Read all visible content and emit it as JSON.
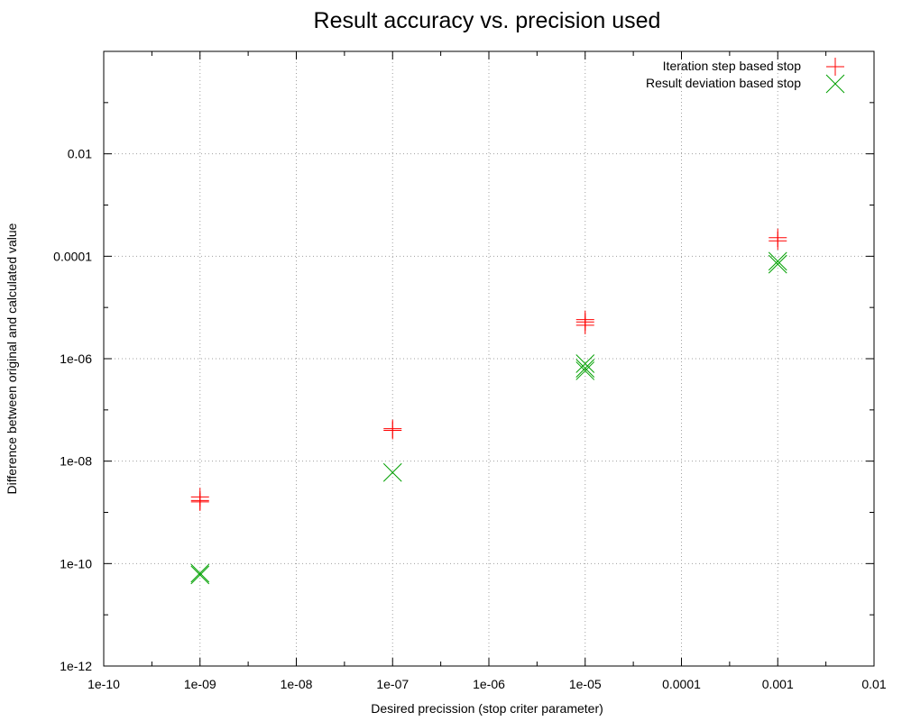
{
  "chart_data": {
    "type": "scatter",
    "title": "Result accuracy vs. precision used",
    "xlabel": "Desired precission (stop criter parameter)",
    "ylabel": "Difference between original and calculated value",
    "xscale": "log",
    "yscale": "log",
    "xlim": [
      1e-10,
      0.01
    ],
    "ylim": [
      1e-12,
      1
    ],
    "x_ticks": [
      {
        "value": 1e-10,
        "label": "1e-10"
      },
      {
        "value": 1e-09,
        "label": "1e-09"
      },
      {
        "value": 1e-08,
        "label": "1e-08"
      },
      {
        "value": 1e-07,
        "label": "1e-07"
      },
      {
        "value": 1e-06,
        "label": "1e-06"
      },
      {
        "value": 1e-05,
        "label": "1e-05"
      },
      {
        "value": 0.0001,
        "label": "0.0001"
      },
      {
        "value": 0.001,
        "label": "0.001"
      },
      {
        "value": 0.01,
        "label": "0.01"
      }
    ],
    "y_ticks": [
      {
        "value": 1e-12,
        "label": "1e-12"
      },
      {
        "value": 1e-10,
        "label": "1e-10"
      },
      {
        "value": 1e-08,
        "label": "1e-08"
      },
      {
        "value": 1e-06,
        "label": "1e-06"
      },
      {
        "value": 0.0001,
        "label": "0.0001"
      },
      {
        "value": 0.01,
        "label": "0.01"
      }
    ],
    "grid": true,
    "legend_position": "top-right",
    "series": [
      {
        "name": "Iteration step based stop",
        "marker": "plus",
        "color": "#ff0000",
        "points": [
          {
            "x": 1e-09,
            "y": 2e-09
          },
          {
            "x": 1e-09,
            "y": 1.7e-09
          },
          {
            "x": 1e-09,
            "y": 1.6e-09
          },
          {
            "x": 1e-07,
            "y": 4.3e-08
          },
          {
            "x": 1e-07,
            "y": 4e-08
          },
          {
            "x": 1e-05,
            "y": 5.8e-06
          },
          {
            "x": 1e-05,
            "y": 5.2e-06
          },
          {
            "x": 1e-05,
            "y": 4.5e-06
          },
          {
            "x": 0.001,
            "y": 0.00023
          },
          {
            "x": 0.001,
            "y": 0.0002
          }
        ]
      },
      {
        "name": "Result deviation based stop",
        "marker": "cross",
        "color": "#00a000",
        "points": [
          {
            "x": 1e-09,
            "y": 6.5e-11
          },
          {
            "x": 1e-09,
            "y": 6e-11
          },
          {
            "x": 1e-07,
            "y": 6e-09
          },
          {
            "x": 1e-05,
            "y": 8e-07
          },
          {
            "x": 1e-05,
            "y": 6.5e-07
          },
          {
            "x": 1e-05,
            "y": 5.8e-07
          },
          {
            "x": 0.001,
            "y": 8e-05
          },
          {
            "x": 0.001,
            "y": 7e-05
          }
        ]
      }
    ]
  }
}
